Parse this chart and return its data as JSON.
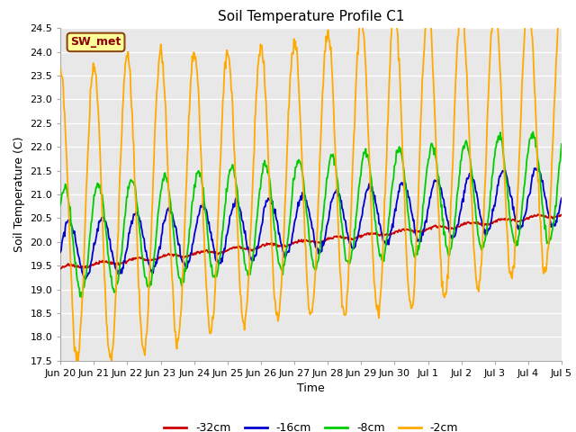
{
  "title": "Soil Temperature Profile C1",
  "xlabel": "Time",
  "ylabel": "Soil Temperature (C)",
  "ylim": [
    17.5,
    24.5
  ],
  "yticks": [
    17.5,
    18.0,
    18.5,
    19.0,
    19.5,
    20.0,
    20.5,
    21.0,
    21.5,
    22.0,
    22.5,
    23.0,
    23.5,
    24.0,
    24.5
  ],
  "fig_bg": "#ffffff",
  "plot_bg": "#e8e8e8",
  "legend_label": "SW_met",
  "legend_bg": "#ffff99",
  "legend_border": "#8B4513",
  "legend_text_color": "#8B0000",
  "series_colors": {
    "-32cm": "#cc0000",
    "-16cm": "#0000cc",
    "-8cm": "#00cc00",
    "-2cm": "#ffaa00"
  },
  "xtick_labels": [
    "Jun 20",
    "Jun 21",
    "Jun 22",
    "Jun 23",
    "Jun 24",
    "Jun 25",
    "Jun 26",
    "Jun 27",
    "Jun 28",
    "Jun 29",
    "Jun 30",
    "Jul 1",
    "Jul 2",
    "Jul 3",
    "Jul 4",
    "Jul 5"
  ],
  "grid_color": "#ffffff",
  "title_fontsize": 11,
  "axis_label_fontsize": 9,
  "tick_fontsize": 8
}
